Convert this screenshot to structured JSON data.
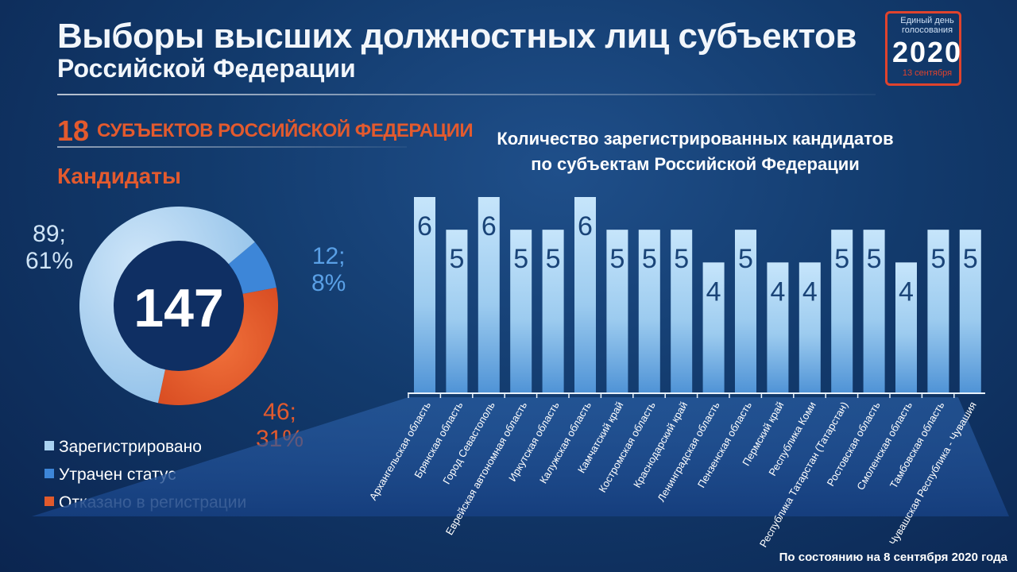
{
  "header": {
    "title_line1": "Выборы высших должностных лиц субъектов",
    "title_line2": "Российской Федерации"
  },
  "logo": {
    "line1": "Единый день",
    "line2": "голосования",
    "year": "2020",
    "date": "13 сентября"
  },
  "subjects": {
    "count": "18",
    "label": "СУБЪЕКТОВ РОССИЙСКОЙ ФЕДЕРАЦИИ"
  },
  "candidates_heading": "Кандидаты",
  "colors": {
    "accent": "#e35a2e",
    "registered": "#a9d2f1",
    "lost": "#3d86d8",
    "refused": "#e05a2c",
    "bar": "#aad4f4"
  },
  "footer": "По состоянию на 8 сентября 2020 года",
  "chart_data": [
    {
      "type": "pie",
      "center_label": "147",
      "slices": [
        {
          "name": "Зарегистрировано",
          "value": 89,
          "percent": "61%",
          "label": "89;",
          "label2": "61%"
        },
        {
          "name": "Утрачен статус",
          "value": 12,
          "percent": "8%",
          "label": "12;",
          "label2": "8%"
        },
        {
          "name": "Отказано в регистрации",
          "value": 46,
          "percent": "31%",
          "label": "46;",
          "label2": "31%"
        }
      ],
      "legend": [
        "Зарегистрировано",
        "Утрачен статус",
        "Отказано в регистрации"
      ],
      "legend_placement": "bottom-left"
    },
    {
      "type": "bar",
      "title_line1": "Количество зарегистрированных кандидатов",
      "title_line2": "по субъектам Российской Федерации",
      "categories": [
        "Архангельская область",
        "Брянская область",
        "Город Севастополь",
        "Еврейская автономная область",
        "Иркутская область",
        "Калужская область",
        "Камчатский край",
        "Костромская область",
        "Краснодарский край",
        "Ленинградская область",
        "Пензенская область",
        "Пермский край",
        "Республика Коми",
        "Республика Татарстан (Татарстан)",
        "Ростовская область",
        "Смоленская область",
        "Тамбовская область",
        "Чувашская Республика - Чувашия"
      ],
      "values": [
        6,
        5,
        6,
        5,
        5,
        6,
        5,
        5,
        5,
        4,
        5,
        4,
        4,
        5,
        5,
        4,
        5,
        5
      ],
      "ylim": [
        0,
        6
      ],
      "grid": false,
      "data_labels": true
    }
  ]
}
